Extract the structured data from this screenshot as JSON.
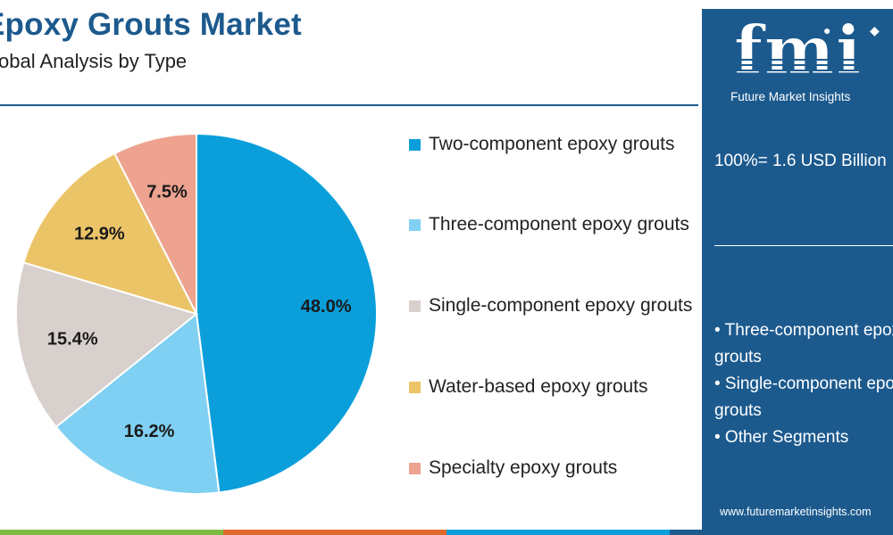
{
  "chart_data": {
    "type": "pie",
    "title": "Epoxy Grouts Market",
    "subtitle": "Global Analysis by Type",
    "slices": [
      {
        "label": "Two-component epoxy grouts",
        "value": 48.0,
        "display": "48.0%",
        "color": "#0a9fdb"
      },
      {
        "label": "Three-component epoxy grouts",
        "value": 16.2,
        "display": "16.2%",
        "color": "#7fd0f2"
      },
      {
        "label": "Single-component epoxy grouts",
        "value": 15.4,
        "display": "15.4%",
        "color": "#d8d0cc"
      },
      {
        "label": "Water-based epoxy grouts",
        "value": 12.9,
        "display": "12.9%",
        "color": "#ecc468"
      },
      {
        "label": "Specialty epoxy grouts",
        "value": 7.5,
        "display": "7.5%",
        "color": "#eda390"
      }
    ],
    "legend_position": "right"
  },
  "side_panel": {
    "logo_text": "fmi",
    "brand": "Future Market Insights",
    "total": "100%= 1.6 USD Billion",
    "bullets": [
      "• Three-component epoxy grouts",
      "• Single-component epoxy grouts",
      "• Other Segments"
    ],
    "website": "www.futuremarketinsights.com",
    "background": "#1c5a8e"
  },
  "bottom_stripe_colors": [
    "#7dbb42",
    "#e06a2c",
    "#0a9fdb",
    "#1c5a8e"
  ]
}
